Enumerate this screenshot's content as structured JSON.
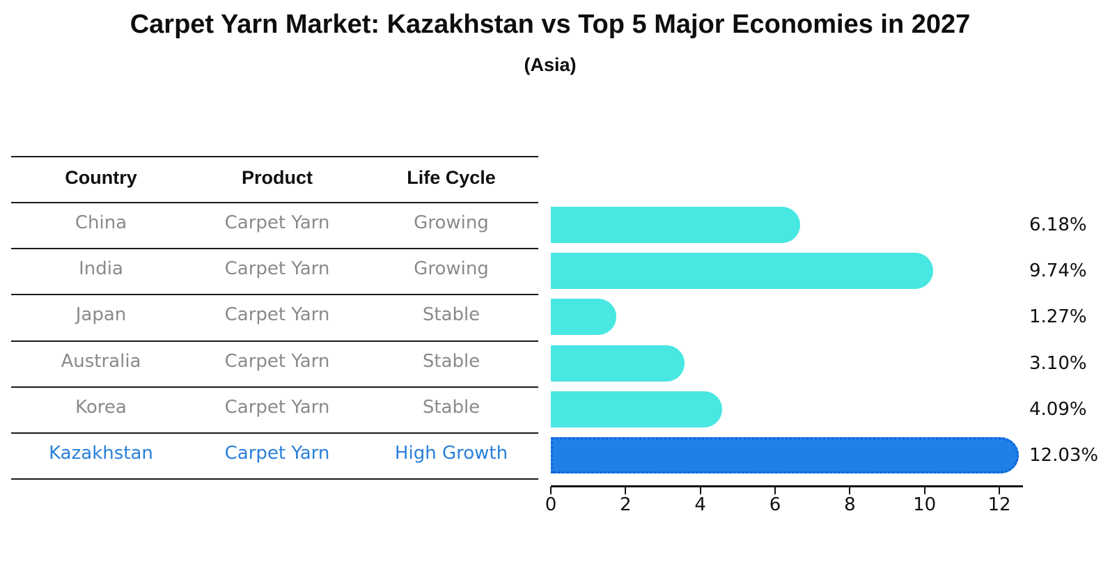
{
  "title": "Carpet Yarn Market: Kazakhstan vs Top 5 Major Economies in 2027",
  "subtitle": "(Asia)",
  "table": {
    "headers": [
      "Country",
      "Product",
      "Life Cycle"
    ],
    "rows": [
      {
        "country": "China",
        "product": "Carpet Yarn",
        "life_cycle": "Growing",
        "value": 6.18,
        "value_label": "6.18%",
        "highlight": false
      },
      {
        "country": "India",
        "product": "Carpet Yarn",
        "life_cycle": "Growing",
        "value": 9.74,
        "value_label": "9.74%",
        "highlight": false
      },
      {
        "country": "Japan",
        "product": "Carpet Yarn",
        "life_cycle": "Stable",
        "value": 1.27,
        "value_label": "1.27%",
        "highlight": false
      },
      {
        "country": "Australia",
        "product": "Carpet Yarn",
        "life_cycle": "Stable",
        "value": 3.1,
        "value_label": "3.10%",
        "highlight": false
      },
      {
        "country": "Korea",
        "product": "Carpet Yarn",
        "life_cycle": "Stable",
        "value": 4.09,
        "value_label": "4.09%",
        "highlight": false
      },
      {
        "country": "Kazakhstan",
        "product": "Carpet Yarn",
        "life_cycle": "High Growth",
        "value": 12.03,
        "value_label": "12.03%",
        "highlight": true
      }
    ]
  },
  "axis": {
    "tick_labels": [
      "0",
      "2",
      "4",
      "6",
      "8",
      "10",
      "12"
    ],
    "min": 0,
    "max": 12
  },
  "colors": {
    "bar": "#48e7e2",
    "highlight_bar": "#1f80e8",
    "highlight_border": "#0f5fd7",
    "highlight_text": "#2a80da",
    "row_text": "#8a8a8a",
    "header_text": "#111111",
    "line": "#1a1a1a"
  },
  "chart_data": {
    "type": "bar",
    "orientation": "horizontal",
    "title": "Carpet Yarn Market: Kazakhstan vs Top 5 Major Economies in 2027",
    "subtitle": "(Asia)",
    "categories": [
      "China",
      "India",
      "Japan",
      "Australia",
      "Korea",
      "Kazakhstan"
    ],
    "values": [
      6.18,
      9.74,
      1.27,
      3.1,
      4.09,
      12.03
    ],
    "value_labels": [
      "6.18%",
      "9.74%",
      "1.27%",
      "3.10%",
      "4.09%",
      "12.03%"
    ],
    "xlabel": "",
    "ylabel": "",
    "xlim": [
      0,
      12.6
    ],
    "xticks": [
      0,
      2,
      4,
      6,
      8,
      10,
      12
    ],
    "grid": false,
    "legend": false,
    "bar_colors": [
      "#48e7e2",
      "#48e7e2",
      "#48e7e2",
      "#48e7e2",
      "#48e7e2",
      "#1f80e8"
    ],
    "highlight_index": 5,
    "table_columns": [
      "Country",
      "Product",
      "Life Cycle"
    ],
    "table_rows": [
      [
        "China",
        "Carpet Yarn",
        "Growing"
      ],
      [
        "India",
        "Carpet Yarn",
        "Growing"
      ],
      [
        "Japan",
        "Carpet Yarn",
        "Stable"
      ],
      [
        "Australia",
        "Carpet Yarn",
        "Stable"
      ],
      [
        "Korea",
        "Carpet Yarn",
        "Stable"
      ],
      [
        "Kazakhstan",
        "Carpet Yarn",
        "High Growth"
      ]
    ]
  }
}
